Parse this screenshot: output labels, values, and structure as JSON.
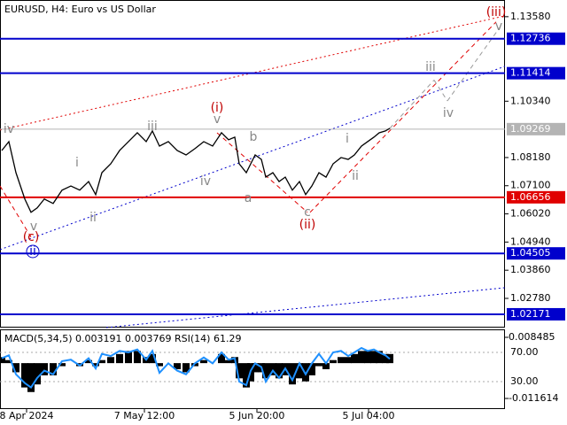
{
  "chart_data": [
    {
      "type": "line",
      "title": "EURUSD, H4:  Euro vs US Dollar",
      "color": "#000000",
      "x": [
        2,
        10,
        18,
        28,
        35,
        42,
        50,
        60,
        70,
        80,
        90,
        100,
        108,
        115,
        125,
        135,
        145,
        155,
        165,
        172,
        180,
        190,
        200,
        210,
        220,
        230,
        240,
        250,
        258,
        265,
        270,
        278,
        283,
        288,
        295,
        300,
        308,
        315,
        322,
        330,
        338,
        345,
        352,
        360,
        368,
        376,
        385,
        393,
        400,
        408,
        415,
        422,
        428,
        435,
        440
      ],
      "values": [
        1.0845,
        1.0879,
        1.076,
        1.0659,
        1.0608,
        1.0625,
        1.0659,
        1.0642,
        1.0693,
        1.0709,
        1.0693,
        1.0726,
        1.0676,
        1.076,
        1.0794,
        1.0845,
        1.0879,
        1.0913,
        1.0879,
        1.092,
        1.0862,
        1.0879,
        1.0845,
        1.0828,
        1.0852,
        1.0879,
        1.0862,
        1.0913,
        1.0886,
        1.0896,
        1.0794,
        1.076,
        1.0794,
        1.0828,
        1.0811,
        1.0743,
        1.076,
        1.0726,
        1.0743,
        1.0693,
        1.0726,
        1.0676,
        1.0709,
        1.076,
        1.0743,
        1.0794,
        1.0818,
        1.0811,
        1.0828,
        1.0862,
        1.0879,
        1.0896,
        1.0913,
        1.092,
        1.093
      ],
      "xlim": [
        0,
        570
      ],
      "xticks": [
        {
          "value": 30,
          "label": "8 Apr 2024"
        },
        {
          "value": 163,
          "label": "7 May 12:00"
        },
        {
          "value": 290,
          "label": "5 Jun 20:00"
        },
        {
          "value": 416,
          "label": "5 Jul 04:00"
        }
      ],
      "ylim": [
        1.0166,
        1.1422
      ],
      "yticks": [
        {
          "value": 1.1358,
          "label": "1.13580"
        },
        {
          "value": 1.1034,
          "label": "1.10340"
        },
        {
          "value": 1.0818,
          "label": "1.08180"
        },
        {
          "value": 1.071,
          "label": "1.07100"
        },
        {
          "value": 1.0602,
          "label": "1.06020"
        },
        {
          "value": 1.0494,
          "label": "1.04940"
        },
        {
          "value": 1.0386,
          "label": "1.03860"
        },
        {
          "value": 1.0278,
          "label": "1.02780"
        }
      ],
      "levels": [
        {
          "value": 1.12736,
          "color": "#0000cc"
        },
        {
          "value": 1.11414,
          "color": "#0000cc"
        },
        {
          "value": 1.09269,
          "color": "#b4b4b4"
        },
        {
          "value": 1.06656,
          "color": "#e00000"
        },
        {
          "value": 1.04505,
          "color": "#0000cc"
        },
        {
          "value": 1.02171,
          "color": "#0000cc"
        }
      ],
      "trendlines": [
        {
          "color": "#0000cc",
          "style": "dotted",
          "points": [
            [
              0,
              1.0465
            ],
            [
              570,
              1.11678
            ]
          ]
        },
        {
          "color": "#e00000",
          "style": "dotted",
          "points": [
            [
              0,
              1.09234
            ],
            [
              570,
              1.13614
            ]
          ]
        },
        {
          "color": "#0000cc",
          "style": "dotted",
          "points": [
            [
              120,
              1.01661
            ],
            [
              570,
              1.0319
            ]
          ]
        },
        {
          "color": "#e00000",
          "style": "dashed",
          "points": [
            [
              350,
              1.0608
            ],
            [
              560,
              1.1338
            ]
          ]
        },
        {
          "color": "#999999",
          "style": "dashed",
          "points": [
            [
              440,
              1.093
            ],
            [
              490,
              1.1115
            ]
          ]
        },
        {
          "color": "#999999",
          "style": "dashed",
          "points": [
            [
              490,
              1.1115
            ],
            [
              505,
              1.1035
            ]
          ]
        },
        {
          "color": "#999999",
          "style": "dashed",
          "points": [
            [
              505,
              1.1035
            ],
            [
              565,
              1.1321
            ]
          ]
        },
        {
          "color": "#e00000",
          "style": "dashed",
          "points": [
            [
              0,
              1.0709
            ],
            [
              35,
              1.0513
            ]
          ]
        },
        {
          "color": "#e00000",
          "style": "dashed",
          "points": [
            [
              245,
              1.0913
            ],
            [
              347,
              1.0608
            ]
          ]
        }
      ],
      "annotations": [
        {
          "text": "(iii)",
          "x": 560,
          "y": 1.1375,
          "color": "#c00000"
        },
        {
          "text": "v",
          "x": 563,
          "y": 1.1321,
          "color": "#888888"
        },
        {
          "text": "iii",
          "x": 486,
          "y": 1.1164,
          "color": "#888888"
        },
        {
          "text": "iv",
          "x": 506,
          "y": 1.0988,
          "color": "#888888"
        },
        {
          "text": "(i)",
          "x": 245,
          "y": 1.1008,
          "color": "#c00000"
        },
        {
          "text": "v",
          "x": 245,
          "y": 1.0964,
          "color": "#888888"
        },
        {
          "text": "iii",
          "x": 172,
          "y": 1.0937,
          "color": "#888888"
        },
        {
          "text": "b",
          "x": 286,
          "y": 1.0896,
          "color": "#888888"
        },
        {
          "text": "i",
          "x": 87,
          "y": 1.0798,
          "color": "#888888"
        },
        {
          "text": "iv",
          "x": 232,
          "y": 1.0726,
          "color": "#888888"
        },
        {
          "text": "a",
          "x": 280,
          "y": 1.0662,
          "color": "#888888"
        },
        {
          "text": "ii",
          "x": 105,
          "y": 1.0587,
          "color": "#888888"
        },
        {
          "text": "i",
          "x": 392,
          "y": 1.0889,
          "color": "#888888"
        },
        {
          "text": "ii",
          "x": 401,
          "y": 1.0747,
          "color": "#888888"
        },
        {
          "text": "c",
          "x": 347,
          "y": 1.0608,
          "color": "#888888"
        },
        {
          "text": "(ii)",
          "x": 347,
          "y": 1.056,
          "color": "#c00000"
        },
        {
          "text": "iv",
          "x": 10,
          "y": 1.0927,
          "color": "#888888"
        },
        {
          "text": "v",
          "x": 38,
          "y": 1.0553,
          "color": "#888888"
        },
        {
          "text": "(c)",
          "x": 35,
          "y": 1.0513,
          "color": "#c00000"
        },
        {
          "text": "ii",
          "x": 37,
          "y": 1.0458,
          "color": "#0000cc",
          "circled": true
        }
      ]
    },
    {
      "type": "macd",
      "title": "MACD(5,34,5) 0.003191 0.003769 RSI(14) 61.29",
      "color": "#000000",
      "x": [
        2,
        10,
        18,
        28,
        35,
        42,
        50,
        60,
        70,
        80,
        90,
        100,
        108,
        115,
        125,
        135,
        145,
        155,
        165,
        172,
        180,
        190,
        200,
        210,
        220,
        230,
        240,
        250,
        258,
        265,
        270,
        278,
        283,
        288,
        295,
        300,
        308,
        315,
        322,
        330,
        338,
        345,
        352,
        360,
        368,
        376,
        385,
        393,
        400,
        408,
        415,
        422,
        428,
        435,
        440
      ],
      "values": [
        0.002,
        0.001,
        -0.003,
        -0.008,
        -0.0095,
        -0.007,
        -0.004,
        -0.004,
        -0.001,
        0.0,
        -0.001,
        0.001,
        -0.001,
        0.001,
        0.002,
        0.003,
        0.004,
        0.004,
        0.002,
        0.003,
        -0.001,
        0.0,
        -0.002,
        -0.003,
        -0.001,
        0.001,
        0.0,
        0.003,
        0.001,
        0.002,
        -0.005,
        -0.008,
        -0.006,
        -0.003,
        -0.003,
        -0.005,
        -0.004,
        -0.005,
        -0.004,
        -0.007,
        -0.005,
        -0.006,
        -0.004,
        -0.001,
        -0.002,
        0.001,
        0.002,
        0.002,
        0.003,
        0.004,
        0.004,
        0.004,
        0.004,
        0.003,
        0.003
      ],
      "rsi": {
        "color": "#1e90ff",
        "axis": "y2",
        "values": [
          62,
          66,
          40,
          28,
          22,
          35,
          45,
          40,
          58,
          60,
          52,
          62,
          48,
          68,
          65,
          72,
          70,
          74,
          60,
          72,
          42,
          55,
          45,
          40,
          55,
          63,
          55,
          70,
          60,
          62,
          30,
          25,
          45,
          55,
          50,
          30,
          45,
          35,
          48,
          32,
          55,
          40,
          55,
          68,
          55,
          70,
          72,
          65,
          70,
          76,
          72,
          74,
          70,
          66,
          61
        ]
      },
      "xlim": [
        0,
        570
      ],
      "ylim": [
        -0.0151,
        0.0111
      ],
      "yticks": [
        0.008485,
        -0.011614
      ],
      "y2lim": [
        -7.6,
        101.5
      ],
      "y2ticks": [
        {
          "value": 70,
          "label": "70.00"
        },
        {
          "value": 30,
          "label": "30.00"
        }
      ]
    }
  ]
}
